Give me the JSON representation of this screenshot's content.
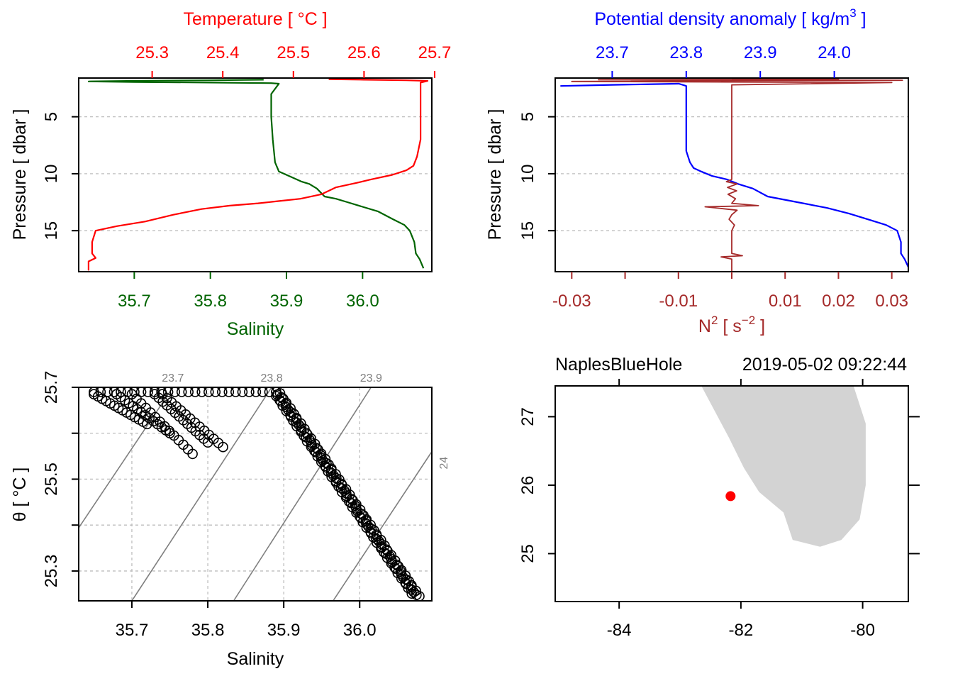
{
  "colors": {
    "temperature": "#ff0000",
    "salinity": "#006400",
    "density": "#0000ff",
    "n2": "#a52a2a",
    "grid": "#bebebe",
    "isopycnal": "#7f7f7f",
    "land": "#d3d3d3",
    "station": "#ff0000",
    "axis": "#000000"
  },
  "chart_data": [
    {
      "id": "profile_ts",
      "type": "line",
      "title": "Temperature [ °C ]",
      "xlabel_top": "Temperature [ °C ]",
      "xlabel_bottom": "Salinity",
      "ylabel": "Pressure [ dbar ]",
      "top_ticks": [
        "25.3",
        "25.4",
        "25.5",
        "25.6",
        "25.7"
      ],
      "top_range": [
        25.196,
        25.696
      ],
      "bottom_ticks": [
        "35.7",
        "35.8",
        "35.9",
        "36.0"
      ],
      "bottom_range": [
        35.627,
        36.091
      ],
      "y_ticks": [
        "5",
        "10",
        "15"
      ],
      "y_range": [
        18.6,
        1.6
      ],
      "grid": true,
      "series": [
        {
          "name": "Salinity",
          "axis": "bottom",
          "color_key": "salinity",
          "points": [
            [
              35.87,
              1.75
            ],
            [
              35.8,
              1.8
            ],
            [
              35.7,
              1.85
            ],
            [
              35.64,
              1.9
            ],
            [
              35.7,
              1.95
            ],
            [
              35.8,
              2.0
            ],
            [
              35.88,
              2.05
            ],
            [
              35.89,
              2.1
            ],
            [
              35.88,
              3.0
            ],
            [
              35.88,
              5.0
            ],
            [
              35.882,
              7.0
            ],
            [
              35.885,
              9.0
            ],
            [
              35.89,
              9.8
            ],
            [
              35.9,
              10.1
            ],
            [
              35.91,
              10.4
            ],
            [
              35.92,
              10.7
            ],
            [
              35.93,
              10.9
            ],
            [
              35.94,
              11.3
            ],
            [
              35.95,
              12.0
            ],
            [
              35.965,
              12.2
            ],
            [
              35.98,
              12.5
            ],
            [
              36.0,
              12.9
            ],
            [
              36.02,
              13.3
            ],
            [
              36.04,
              14.0
            ],
            [
              36.055,
              14.5
            ],
            [
              36.062,
              15.0
            ],
            [
              36.068,
              16.0
            ],
            [
              36.07,
              17.0
            ],
            [
              36.075,
              17.5
            ],
            [
              36.08,
              18.3
            ]
          ]
        },
        {
          "name": "Temperature",
          "axis": "top",
          "color_key": "temperature",
          "points": [
            [
              25.55,
              1.7
            ],
            [
              25.6,
              1.75
            ],
            [
              25.66,
              1.8
            ],
            [
              25.69,
              1.85
            ],
            [
              25.68,
              2.0
            ],
            [
              25.68,
              3.0
            ],
            [
              25.68,
              5.0
            ],
            [
              25.68,
              7.0
            ],
            [
              25.675,
              8.5
            ],
            [
              25.67,
              9.3
            ],
            [
              25.66,
              9.7
            ],
            [
              25.64,
              10.1
            ],
            [
              25.61,
              10.5
            ],
            [
              25.59,
              10.8
            ],
            [
              25.56,
              11.2
            ],
            [
              25.54,
              11.8
            ],
            [
              25.51,
              12.2
            ],
            [
              25.48,
              12.4
            ],
            [
              25.45,
              12.6
            ],
            [
              25.41,
              12.8
            ],
            [
              25.37,
              13.1
            ],
            [
              25.33,
              13.6
            ],
            [
              25.29,
              14.2
            ],
            [
              25.25,
              14.6
            ],
            [
              25.22,
              15.0
            ],
            [
              25.215,
              16.0
            ],
            [
              25.215,
              17.0
            ],
            [
              25.22,
              17.4
            ],
            [
              25.21,
              17.7
            ],
            [
              25.21,
              18.5
            ]
          ]
        }
      ]
    },
    {
      "id": "profile_density",
      "type": "line",
      "xlabel_top": "Potential density anomaly [ kg/m",
      "xlabel_top_exp": "3",
      "xlabel_top_end": " ]",
      "xlabel_bottom_base": "N",
      "xlabel_bottom_exp": "2",
      "xlabel_bottom_unit": " [ s",
      "xlabel_bottom_unit_exp": "−2",
      "xlabel_bottom_end": " ]",
      "ylabel": "Pressure [ dbar ]",
      "top_ticks": [
        "23.7",
        "23.8",
        "23.9",
        "24.0"
      ],
      "top_range": [
        23.623,
        24.1
      ],
      "bottom_ticks": [
        "-0.03",
        "-0.01",
        "0.01",
        "0.02",
        "0.03"
      ],
      "bottom_ticks_values": [
        -0.03,
        -0.02,
        -0.01,
        0.0,
        0.01,
        0.02,
        0.03
      ],
      "bottom_range": [
        -0.0331,
        0.0331
      ],
      "y_ticks": [
        "5",
        "10",
        "15"
      ],
      "y_range": [
        18.6,
        1.6
      ],
      "grid": true,
      "series": [
        {
          "name": "Potential density anomaly",
          "axis": "top",
          "color_key": "density",
          "points": [
            [
              23.63,
              2.3
            ],
            [
              23.7,
              2.2
            ],
            [
              23.79,
              2.1
            ],
            [
              23.8,
              2.3
            ],
            [
              23.8,
              5.0
            ],
            [
              23.8,
              8.0
            ],
            [
              23.805,
              9.0
            ],
            [
              23.81,
              9.5
            ],
            [
              23.82,
              9.8
            ],
            [
              23.835,
              10.2
            ],
            [
              23.855,
              10.5
            ],
            [
              23.87,
              10.9
            ],
            [
              23.89,
              11.3
            ],
            [
              23.91,
              12.0
            ],
            [
              23.95,
              12.5
            ],
            [
              23.99,
              13.0
            ],
            [
              24.02,
              13.5
            ],
            [
              24.05,
              14.1
            ],
            [
              24.07,
              14.5
            ],
            [
              24.085,
              15.0
            ],
            [
              24.09,
              16.0
            ],
            [
              24.09,
              17.0
            ],
            [
              24.095,
              17.5
            ],
            [
              24.1,
              18.2
            ]
          ]
        },
        {
          "name": "N2",
          "axis": "bottom",
          "color_key": "n2",
          "points": [
            [
              0.0,
              18.6
            ],
            [
              0.0,
              17.5
            ],
            [
              -0.002,
              17.3
            ],
            [
              0.002,
              17.2
            ],
            [
              0.0,
              17.0
            ],
            [
              0.0,
              15.0
            ],
            [
              0.0005,
              14.5
            ],
            [
              -0.0005,
              14.0
            ],
            [
              0.0,
              13.6
            ],
            [
              0.001,
              13.2
            ],
            [
              -0.005,
              12.9
            ],
            [
              0.005,
              12.8
            ],
            [
              0.0,
              12.6
            ],
            [
              0.0007,
              12.2
            ],
            [
              -0.0007,
              11.8
            ],
            [
              0.0009,
              11.5
            ],
            [
              -0.0008,
              11.2
            ],
            [
              0.001,
              10.9
            ],
            [
              -0.001,
              10.7
            ],
            [
              0.0,
              10.5
            ],
            [
              0.0,
              5.0
            ],
            [
              0.0,
              3.0
            ],
            [
              0.0,
              2.2
            ],
            [
              0.03,
              2.0
            ],
            [
              -0.03,
              1.9
            ],
            [
              0.032,
              1.8
            ],
            [
              -0.025,
              1.75
            ],
            [
              0.02,
              1.7
            ],
            [
              0.0,
              1.7
            ]
          ]
        }
      ]
    },
    {
      "id": "ts_diagram",
      "type": "scatter",
      "xlabel": "Salinity",
      "ylabel": "θ [ °C ]",
      "x_ticks": [
        "35.7",
        "35.8",
        "35.9",
        "36.0"
      ],
      "x_range": [
        35.63,
        36.095
      ],
      "y_ticks": [
        "25.3",
        "25.5",
        "25.7"
      ],
      "y_ticks_grid": [
        25.3,
        25.4,
        25.5,
        25.6,
        25.7
      ],
      "y_range": [
        25.235,
        25.7
      ],
      "grid": true,
      "isopycnals": [
        {
          "label": "23.7",
          "from": [
            35.63,
            25.394
          ],
          "to": [
            35.754,
            25.7
          ]
        },
        {
          "label": "23.8",
          "from": [
            35.7,
            25.235
          ],
          "to": [
            35.884,
            25.7
          ]
        },
        {
          "label": "23.9",
          "from": [
            35.834,
            25.235
          ],
          "to": [
            36.015,
            25.7
          ]
        },
        {
          "label": "24",
          "from": [
            35.965,
            25.235
          ],
          "to": [
            36.095,
            25.56
          ]
        }
      ],
      "branch_bottom": {
        "from": [
          35.89,
          25.69
        ],
        "to": [
          36.075,
          25.245
        ],
        "count": 150
      },
      "branch_top": {
        "x_from": 35.65,
        "x_to": 35.89,
        "y": 25.69,
        "count": 28
      },
      "branch_fans": [
        {
          "from": [
            35.65,
            25.685
          ],
          "to": [
            35.72,
            25.62
          ]
        },
        {
          "from": [
            35.68,
            25.685
          ],
          "to": [
            35.75,
            25.6
          ]
        },
        {
          "from": [
            35.7,
            25.685
          ],
          "to": [
            35.78,
            25.555
          ]
        },
        {
          "from": [
            35.73,
            25.685
          ],
          "to": [
            35.8,
            25.58
          ]
        },
        {
          "from": [
            35.74,
            25.685
          ],
          "to": [
            35.82,
            25.57
          ]
        }
      ]
    },
    {
      "id": "station_map",
      "type": "map",
      "station_name": "NaplesBlueHole",
      "station_time": "2019-05-02 09:22:44",
      "x_ticks": [
        "-84",
        "-82",
        "-80"
      ],
      "x_range": [
        -85.05,
        -79.25
      ],
      "y_ticks": [
        "25",
        "26",
        "27"
      ],
      "y_range": [
        24.3,
        27.45
      ],
      "station": {
        "lon": -82.17,
        "lat": 25.84
      },
      "land": [
        [
          -82.65,
          27.45
        ],
        [
          -80.15,
          27.45
        ],
        [
          -79.95,
          26.9
        ],
        [
          -79.95,
          26.0
        ],
        [
          -80.05,
          25.5
        ],
        [
          -80.35,
          25.2
        ],
        [
          -80.7,
          25.1
        ],
        [
          -81.15,
          25.2
        ],
        [
          -81.3,
          25.6
        ],
        [
          -81.7,
          25.9
        ],
        [
          -81.95,
          26.25
        ],
        [
          -82.2,
          26.7
        ],
        [
          -82.65,
          27.45
        ]
      ]
    }
  ]
}
